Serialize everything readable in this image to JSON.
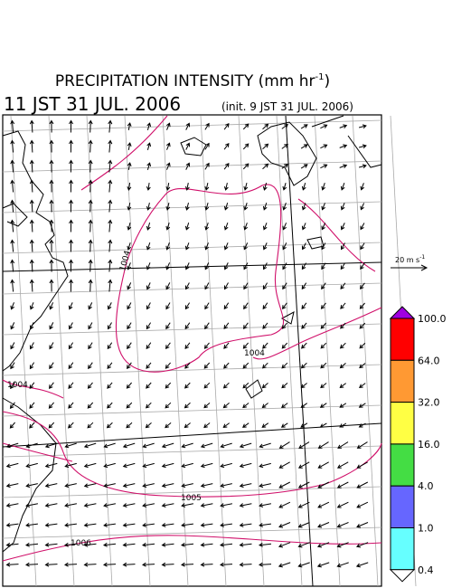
{
  "header": {
    "title": "PRECIPITATION INTENSITY (mm hr",
    "title_superscript": "-1",
    "title_end": ")",
    "valid_time": "11 JST 31 JUL. 2006",
    "init_time": "(init. 9 JST 31 JUL. 2006)"
  },
  "wind_scale": {
    "label": "20 m s",
    "superscript": "-1"
  },
  "isobar_labels": [
    "1004",
    "1004",
    "1004",
    "1005",
    "1006"
  ],
  "colorbar": {
    "labels": [
      "100.0",
      "64.0",
      "32.0",
      "16.0",
      "4.0",
      "1.0",
      "0.4"
    ],
    "colors": [
      "#a000e0",
      "#ff0000",
      "#ff9933",
      "#ffff44",
      "#44dd44",
      "#6666ff",
      "#66ffff",
      "#ffffff"
    ]
  }
}
